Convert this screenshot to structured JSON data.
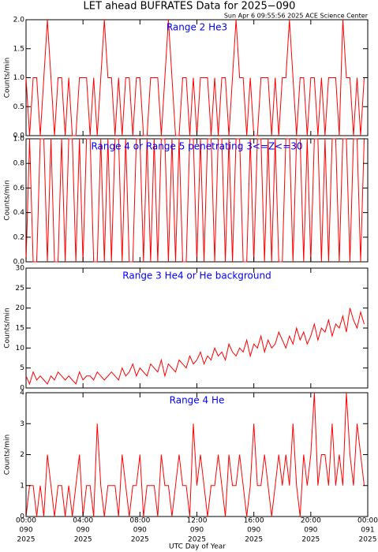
{
  "title": "LET ahead BUFRATES Data for 2025−090",
  "subtitle": "Sun Apr  6 09:55:56 2025 ACE Science Center",
  "xlabel": "UTC Day of Year",
  "chart_data": [
    {
      "type": "line",
      "title": "Range 2 He3",
      "ylabel": "Counts/min",
      "color": "#ff0000",
      "xlim": [
        0,
        24
      ],
      "xticks": [
        0,
        4,
        8,
        12,
        16,
        20,
        24
      ],
      "ylim": [
        0,
        2
      ],
      "yticks": [
        {
          "value": 0,
          "label": "0.0"
        },
        0.5,
        {
          "value": 1,
          "label": "1.0"
        },
        1.5,
        {
          "value": 2,
          "label": "2.0"
        }
      ],
      "x": [
        0,
        0.25,
        0.5,
        0.75,
        1,
        1.25,
        1.5,
        1.75,
        2,
        2.25,
        2.5,
        2.75,
        3,
        3.25,
        3.5,
        3.75,
        4,
        4.25,
        4.5,
        4.75,
        5,
        5.25,
        5.5,
        5.75,
        6,
        6.25,
        6.5,
        6.75,
        7,
        7.25,
        7.5,
        7.75,
        8,
        8.25,
        8.5,
        8.75,
        9,
        9.25,
        9.5,
        9.75,
        10,
        10.25,
        10.5,
        10.75,
        11,
        11.25,
        11.5,
        11.75,
        12,
        12.25,
        12.5,
        12.75,
        13,
        13.25,
        13.5,
        13.75,
        14,
        14.25,
        14.5,
        14.75,
        15,
        15.25,
        15.5,
        15.75,
        16,
        16.25,
        16.5,
        16.75,
        17,
        17.25,
        17.5,
        17.75,
        18,
        18.25,
        18.5,
        18.75,
        19,
        19.25,
        19.5,
        19.75,
        20,
        20.25,
        20.5,
        20.75,
        21,
        21.25,
        21.5,
        21.75,
        22,
        22.25,
        22.5,
        22.75,
        23,
        23.25,
        23.5,
        23.75
      ],
      "values": [
        1,
        0,
        1,
        1,
        0,
        1,
        2,
        1,
        0,
        1,
        1,
        0,
        1,
        0,
        0,
        1,
        1,
        1,
        0,
        1,
        0,
        1,
        2,
        1,
        1,
        0,
        1,
        0,
        1,
        1,
        0,
        1,
        1,
        0,
        0,
        1,
        1,
        1,
        0,
        1,
        2,
        1,
        0,
        0,
        1,
        1,
        0,
        1,
        0,
        1,
        1,
        1,
        0,
        1,
        0,
        1,
        1,
        0,
        1,
        2,
        1,
        1,
        0,
        1,
        0,
        0,
        1,
        1,
        1,
        0,
        1,
        0,
        1,
        1,
        2,
        1,
        0,
        1,
        1,
        0,
        1,
        1,
        0,
        1,
        0,
        1,
        1,
        1,
        0,
        2,
        1,
        1,
        0,
        1,
        0,
        1
      ]
    },
    {
      "type": "line",
      "title": "Range 4 or Range 5 penetrating 3<=Z<=30",
      "ylabel": "Counts/min",
      "color": "#ff0000",
      "xlim": [
        0,
        24
      ],
      "xticks": [
        0,
        4,
        8,
        12,
        16,
        20,
        24
      ],
      "ylim": [
        0,
        1
      ],
      "yticks": [
        {
          "value": 0,
          "label": "0.0"
        },
        0.2,
        0.4,
        0.6,
        0.8,
        {
          "value": 1,
          "label": "1.0"
        }
      ],
      "x": [
        0,
        0.25,
        0.5,
        0.75,
        1,
        1.25,
        1.5,
        1.75,
        2,
        2.25,
        2.5,
        2.75,
        3,
        3.25,
        3.5,
        3.75,
        4,
        4.25,
        4.5,
        4.75,
        5,
        5.25,
        5.5,
        5.75,
        6,
        6.25,
        6.5,
        6.75,
        7,
        7.25,
        7.5,
        7.75,
        8,
        8.25,
        8.5,
        8.75,
        9,
        9.25,
        9.5,
        9.75,
        10,
        10.25,
        10.5,
        10.75,
        11,
        11.25,
        11.5,
        11.75,
        12,
        12.25,
        12.5,
        12.75,
        13,
        13.25,
        13.5,
        13.75,
        14,
        14.25,
        14.5,
        14.75,
        15,
        15.25,
        15.5,
        15.75,
        16,
        16.25,
        16.5,
        16.75,
        17,
        17.25,
        17.5,
        17.75,
        18,
        18.25,
        18.5,
        18.75,
        19,
        19.25,
        19.5,
        19.75,
        20,
        20.25,
        20.5,
        20.75,
        21,
        21.25,
        21.5,
        21.75,
        22,
        22.25,
        22.5,
        22.75,
        23,
        23.25,
        23.5,
        23.75
      ],
      "values": [
        0,
        1,
        0,
        0,
        1,
        1,
        0,
        1,
        0,
        0,
        1,
        0,
        1,
        1,
        0,
        1,
        0,
        1,
        1,
        0,
        0,
        1,
        0,
        1,
        0,
        1,
        1,
        0,
        1,
        0,
        0,
        1,
        1,
        0,
        1,
        0,
        1,
        0,
        1,
        1,
        0,
        1,
        0,
        1,
        0,
        0,
        1,
        1,
        0,
        1,
        0,
        1,
        1,
        0,
        1,
        1,
        0,
        1,
        0,
        1,
        1,
        0,
        0,
        1,
        0,
        1,
        1,
        0,
        1,
        0,
        1,
        0,
        0,
        1,
        1,
        0,
        1,
        1,
        0,
        1,
        0,
        1,
        1,
        0,
        1,
        0,
        1,
        1,
        0,
        1,
        1,
        0,
        1,
        1,
        0,
        1
      ]
    },
    {
      "type": "line",
      "title": "Range 3 He4 or He background",
      "ylabel": "Counts/min",
      "color": "#ff0000",
      "xlim": [
        0,
        24
      ],
      "xticks": [
        0,
        4,
        8,
        12,
        16,
        20,
        24
      ],
      "ylim": [
        0,
        30
      ],
      "yticks": [
        0,
        5,
        10,
        15,
        20,
        25,
        30
      ],
      "x": [
        0,
        0.25,
        0.5,
        0.75,
        1,
        1.25,
        1.5,
        1.75,
        2,
        2.25,
        2.5,
        2.75,
        3,
        3.25,
        3.5,
        3.75,
        4,
        4.25,
        4.5,
        4.75,
        5,
        5.25,
        5.5,
        5.75,
        6,
        6.25,
        6.5,
        6.75,
        7,
        7.25,
        7.5,
        7.75,
        8,
        8.25,
        8.5,
        8.75,
        9,
        9.25,
        9.5,
        9.75,
        10,
        10.25,
        10.5,
        10.75,
        11,
        11.25,
        11.5,
        11.75,
        12,
        12.25,
        12.5,
        12.75,
        13,
        13.25,
        13.5,
        13.75,
        14,
        14.25,
        14.5,
        14.75,
        15,
        15.25,
        15.5,
        15.75,
        16,
        16.25,
        16.5,
        16.75,
        17,
        17.25,
        17.5,
        17.75,
        18,
        18.25,
        18.5,
        18.75,
        19,
        19.25,
        19.5,
        19.75,
        20,
        20.25,
        20.5,
        20.75,
        21,
        21.25,
        21.5,
        21.75,
        22,
        22.25,
        22.5,
        22.75,
        23,
        23.25,
        23.5,
        23.75
      ],
      "values": [
        3,
        1,
        4,
        2,
        3,
        2,
        1,
        3,
        2,
        4,
        3,
        2,
        3,
        2,
        1,
        4,
        2,
        3,
        3,
        2,
        4,
        3,
        2,
        3,
        4,
        3,
        2,
        5,
        3,
        4,
        6,
        3,
        5,
        4,
        3,
        6,
        5,
        4,
        7,
        3,
        6,
        5,
        4,
        7,
        6,
        5,
        8,
        6,
        7,
        9,
        6,
        8,
        7,
        10,
        8,
        9,
        7,
        11,
        9,
        8,
        10,
        9,
        12,
        8,
        11,
        10,
        13,
        9,
        12,
        10,
        11,
        14,
        12,
        10,
        13,
        11,
        15,
        12,
        14,
        11,
        13,
        16,
        12,
        15,
        14,
        17,
        13,
        16,
        15,
        18,
        14,
        20,
        17,
        15,
        19,
        16
      ]
    },
    {
      "type": "line",
      "title": "Range 4 He",
      "ylabel": "Counts/min",
      "color": "#ff0000",
      "xlim": [
        0,
        24
      ],
      "ylim": [
        0,
        4
      ],
      "yticks": [
        0,
        1,
        2,
        3,
        4
      ],
      "xticks": [
        {
          "value": 0,
          "label": "00:00"
        },
        {
          "value": 4,
          "label": "04:00"
        },
        {
          "value": 8,
          "label": "08:00"
        },
        {
          "value": 12,
          "label": "12:00"
        },
        {
          "value": 16,
          "label": "16:00"
        },
        {
          "value": 20,
          "label": "20:00"
        },
        {
          "value": 24,
          "label": "00:00"
        }
      ],
      "xtick_days": [
        "090",
        "090",
        "090",
        "090",
        "090",
        "090",
        "091"
      ],
      "xtick_years": [
        "2025",
        "2025",
        "2025",
        "2025",
        "2025",
        "2025",
        "2025"
      ],
      "x": [
        0,
        0.25,
        0.5,
        0.75,
        1,
        1.25,
        1.5,
        1.75,
        2,
        2.25,
        2.5,
        2.75,
        3,
        3.25,
        3.5,
        3.75,
        4,
        4.25,
        4.5,
        4.75,
        5,
        5.25,
        5.5,
        5.75,
        6,
        6.25,
        6.5,
        6.75,
        7,
        7.25,
        7.5,
        7.75,
        8,
        8.25,
        8.5,
        8.75,
        9,
        9.25,
        9.5,
        9.75,
        10,
        10.25,
        10.5,
        10.75,
        11,
        11.25,
        11.5,
        11.75,
        12,
        12.25,
        12.5,
        12.75,
        13,
        13.25,
        13.5,
        13.75,
        14,
        14.25,
        14.5,
        14.75,
        15,
        15.25,
        15.5,
        15.75,
        16,
        16.25,
        16.5,
        16.75,
        17,
        17.25,
        17.5,
        17.75,
        18,
        18.25,
        18.5,
        18.75,
        19,
        19.25,
        19.5,
        19.75,
        20,
        20.25,
        20.5,
        20.75,
        21,
        21.25,
        21.5,
        21.75,
        22,
        22.25,
        22.5,
        22.75,
        23,
        23.25,
        23.5,
        23.75
      ],
      "values": [
        0,
        1,
        1,
        0,
        1,
        0,
        2,
        1,
        0,
        1,
        1,
        0,
        1,
        0,
        1,
        2,
        0,
        1,
        1,
        0,
        3,
        1,
        0,
        1,
        1,
        1,
        0,
        2,
        1,
        0,
        1,
        1,
        2,
        0,
        1,
        1,
        1,
        0,
        2,
        1,
        1,
        0,
        1,
        2,
        1,
        1,
        0,
        3,
        1,
        2,
        1,
        0,
        1,
        1,
        2,
        1,
        0,
        2,
        1,
        1,
        2,
        1,
        0,
        1,
        3,
        1,
        1,
        2,
        1,
        0,
        1,
        2,
        1,
        2,
        1,
        3,
        1,
        0,
        2,
        1,
        2,
        4,
        1,
        2,
        2,
        1,
        3,
        1,
        2,
        1,
        4,
        2,
        1,
        3,
        2,
        1
      ]
    }
  ]
}
